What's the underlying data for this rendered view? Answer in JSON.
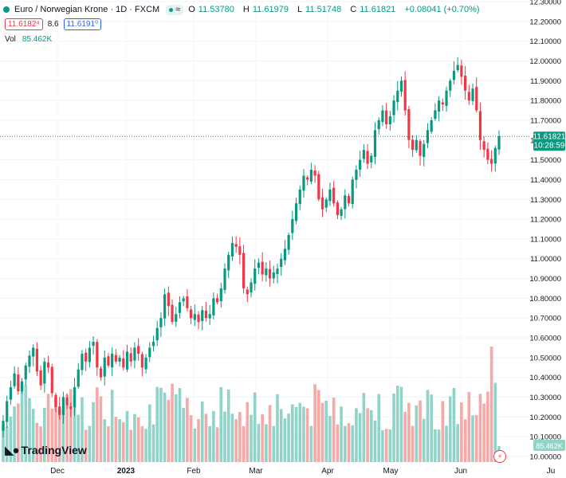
{
  "header": {
    "symbol": "Euro / Norwegian Krone · 1D · FXCM",
    "pill_icon": "approx-equal-icon",
    "open_label": "O",
    "open": "11.53780",
    "high_label": "H",
    "high": "11.61979",
    "low_label": "L",
    "low": "11.51748",
    "close_label": "C",
    "close": "11.61821",
    "change": "+0.08041 (+0.70%)"
  },
  "quote": {
    "sell": "11.6182⁴",
    "spread": "8.6",
    "buy": "11.6191⁰"
  },
  "volume": {
    "label": "Vol",
    "value": "85.462K"
  },
  "last_price": {
    "price": "11.61821",
    "countdown": "10:28:59"
  },
  "logo_text": "TradingView",
  "colors": {
    "up": "#089981",
    "down": "#f23645",
    "vol_up": "#8fd3c9",
    "vol_down": "#f7a9a7"
  },
  "chart_data": {
    "type": "candlestick",
    "title": "Euro / Norwegian Krone · 1D · FXCM",
    "y_ticks": [
      "12.30000",
      "12.20000",
      "12.10000",
      "12.00000",
      "11.90000",
      "11.80000",
      "11.70000",
      "11.60000",
      "11.50000",
      "11.40000",
      "11.30000",
      "11.20000",
      "11.10000",
      "11.00000",
      "10.90000",
      "10.80000",
      "10.70000",
      "10.60000",
      "10.50000",
      "10.40000",
      "10.30000",
      "10.20000",
      "10.10000",
      "10.00000"
    ],
    "ylim": [
      10.0,
      12.3
    ],
    "x_ticks": [
      "Dec",
      "2023",
      "Feb",
      "Mar",
      "Apr",
      "May",
      "Jun",
      "Ju"
    ],
    "grid": true,
    "close_series_approx": [
      10.18,
      10.28,
      10.35,
      10.42,
      10.33,
      10.38,
      10.46,
      10.51,
      10.55,
      10.43,
      10.36,
      10.48,
      10.45,
      10.32,
      10.25,
      10.21,
      10.3,
      10.26,
      10.24,
      10.35,
      10.44,
      10.52,
      10.48,
      10.55,
      10.58,
      10.45,
      10.4,
      10.5,
      10.46,
      10.52,
      10.48,
      10.5,
      10.45,
      10.53,
      10.48,
      10.55,
      10.52,
      10.45,
      10.5,
      10.55,
      10.58,
      10.65,
      10.7,
      10.82,
      10.76,
      10.68,
      10.72,
      10.78,
      10.8,
      10.75,
      10.7,
      10.72,
      10.68,
      10.74,
      10.7,
      10.72,
      10.8,
      10.78,
      10.85,
      10.95,
      11.02,
      11.08,
      11.06,
      11.02,
      10.85,
      10.82,
      10.88,
      10.95,
      10.98,
      10.92,
      10.95,
      10.9,
      10.93,
      10.95,
      11.0,
      11.05,
      11.12,
      11.2,
      11.28,
      11.35,
      11.42,
      11.4,
      11.45,
      11.42,
      11.3,
      11.25,
      11.3,
      11.35,
      11.28,
      11.22,
      11.25,
      11.32,
      11.28,
      11.4,
      11.45,
      11.5,
      11.55,
      11.48,
      11.52,
      11.65,
      11.7,
      11.75,
      11.68,
      11.72,
      11.8,
      11.85,
      11.9,
      11.75,
      11.6,
      11.55,
      11.6,
      11.52,
      11.58,
      11.65,
      11.7,
      11.75,
      11.8,
      11.78,
      11.85,
      11.9,
      11.95,
      11.98,
      11.92,
      11.85,
      11.8,
      11.86,
      11.75,
      11.6,
      11.55,
      11.5,
      11.48,
      11.56,
      11.62
    ],
    "last_close": 11.61821,
    "volume_unit": "K",
    "volume_last": "85.462K"
  }
}
